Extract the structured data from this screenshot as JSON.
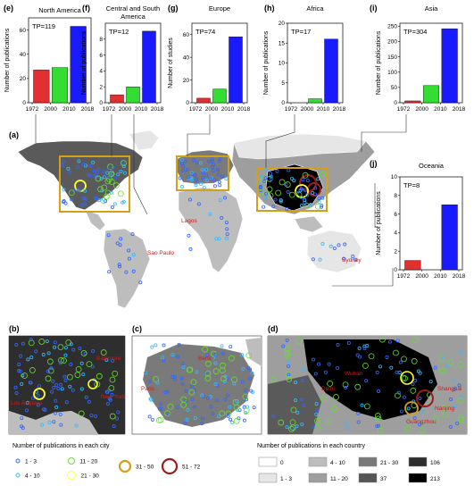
{
  "chart_data": [
    {
      "id": "e",
      "type": "bar",
      "panel_label": "(e)",
      "title": "North America",
      "tp": "TP=119",
      "ylabel": "Number of publications",
      "ylim": [
        0,
        70
      ],
      "yticks": [
        0,
        20,
        40,
        60
      ],
      "xtick_labels": [
        "1972",
        "2000",
        "2010",
        "2018"
      ],
      "bars": [
        {
          "period": "1972-2000",
          "value": 27,
          "color": "#e03030"
        },
        {
          "period": "2000-2010",
          "value": 29,
          "color": "#33dd33"
        },
        {
          "period": "2010-2018",
          "value": 63,
          "color": "#1a1aff"
        }
      ]
    },
    {
      "id": "f",
      "type": "bar",
      "panel_label": "(f)",
      "title": "Central and South America",
      "tp": "TP=12",
      "ylabel": "Number of publications",
      "ylim": [
        0,
        10
      ],
      "yticks": [
        0,
        2,
        4,
        6,
        8
      ],
      "xtick_labels": [
        "1972",
        "2000",
        "2010",
        "2018"
      ],
      "bars": [
        {
          "period": "1972-2000",
          "value": 1,
          "color": "#e03030"
        },
        {
          "period": "2000-2010",
          "value": 2,
          "color": "#33dd33"
        },
        {
          "period": "2010-2018",
          "value": 9,
          "color": "#1a1aff"
        }
      ]
    },
    {
      "id": "g",
      "type": "bar",
      "panel_label": "(g)",
      "title": "Europe",
      "tp": "TP=74",
      "ylabel": "Number of studies",
      "ylim": [
        0,
        70
      ],
      "yticks": [
        0,
        20,
        40,
        60
      ],
      "xtick_labels": [
        "1972",
        "2000",
        "2010",
        "2018"
      ],
      "bars": [
        {
          "period": "1972-2000",
          "value": 4,
          "color": "#e03030"
        },
        {
          "period": "2000-2010",
          "value": 12,
          "color": "#33dd33"
        },
        {
          "period": "2010-2018",
          "value": 58,
          "color": "#1a1aff"
        }
      ]
    },
    {
      "id": "h",
      "type": "bar",
      "panel_label": "(h)",
      "title": "Africa",
      "tp": "TP=17",
      "ylabel": "Number of publications",
      "ylim": [
        0,
        20
      ],
      "yticks": [
        0,
        5,
        10,
        15,
        20
      ],
      "xtick_labels": [
        "1972",
        "2000",
        "2010",
        "2018"
      ],
      "bars": [
        {
          "period": "1972-2000",
          "value": 0,
          "color": "#e03030"
        },
        {
          "period": "2000-2010",
          "value": 1,
          "color": "#33dd33"
        },
        {
          "period": "2010-2018",
          "value": 16,
          "color": "#1a1aff"
        }
      ]
    },
    {
      "id": "i",
      "type": "bar",
      "panel_label": "(i)",
      "title": "Asia",
      "tp": "TP=304",
      "ylabel": "Number of publications",
      "ylim": [
        0,
        260
      ],
      "yticks": [
        0,
        50,
        100,
        150,
        200,
        250
      ],
      "xtick_labels": [
        "1972",
        "2000",
        "2010",
        "2018"
      ],
      "bars": [
        {
          "period": "1972-2000",
          "value": 6,
          "color": "#e03030"
        },
        {
          "period": "2000-2010",
          "value": 56,
          "color": "#33dd33"
        },
        {
          "period": "2010-2018",
          "value": 242,
          "color": "#1a1aff"
        }
      ]
    },
    {
      "id": "j",
      "type": "bar",
      "panel_label": "(j)",
      "title": "Oceania",
      "tp": "TP=8",
      "ylabel": "Number of publications",
      "ylim": [
        0,
        10
      ],
      "yticks": [
        0,
        2,
        4,
        6,
        8,
        10
      ],
      "xtick_labels": [
        "1972",
        "2000",
        "2010",
        "2018"
      ],
      "bars": [
        {
          "period": "1972-2000",
          "value": 1,
          "color": "#e03030"
        },
        {
          "period": "2000-2010",
          "value": 0,
          "color": "#33dd33"
        },
        {
          "period": "2010-2018",
          "value": 7,
          "color": "#1a1aff"
        }
      ]
    }
  ],
  "map_labels": {
    "a": "(a)",
    "b": "(b)",
    "c": "(c)",
    "d": "(d)",
    "world_cities": [
      "Lagos",
      "Sao Paulo",
      "Sydney"
    ],
    "b_cities": [
      "Baltimore",
      "New York",
      "Los Angeles"
    ],
    "c_cities": [
      "Berlin",
      "Paris"
    ],
    "d_cities": [
      "Wuhan",
      "Shanghai",
      "Nanjing",
      "Guangzhou",
      "Delhi"
    ]
  },
  "legend_city": {
    "title": "Number of publications in each city",
    "items": [
      {
        "label": "1 - 3",
        "color": "#3366ff"
      },
      {
        "label": "4 - 10",
        "color": "#33bbff"
      },
      {
        "label": "11 - 20",
        "color": "#66dd33"
      },
      {
        "label": "21 - 30",
        "color": "#ffff33"
      },
      {
        "label": "31 - 50",
        "color": "#d4a017"
      },
      {
        "label": "51 - 72",
        "color": "#9b1c1c"
      }
    ]
  },
  "legend_country": {
    "title": "Number of publications in each country",
    "items": [
      {
        "label": "0",
        "color": "#ffffff"
      },
      {
        "label": "1 - 3",
        "color": "#e6e6e6"
      },
      {
        "label": "4 - 10",
        "color": "#bdbdbd"
      },
      {
        "label": "11 - 20",
        "color": "#9e9e9e"
      },
      {
        "label": "21 - 30",
        "color": "#7a7a7a"
      },
      {
        "label": "37",
        "color": "#555555"
      },
      {
        "label": "106",
        "color": "#2e2e2e"
      },
      {
        "label": "213",
        "color": "#000000"
      }
    ]
  }
}
